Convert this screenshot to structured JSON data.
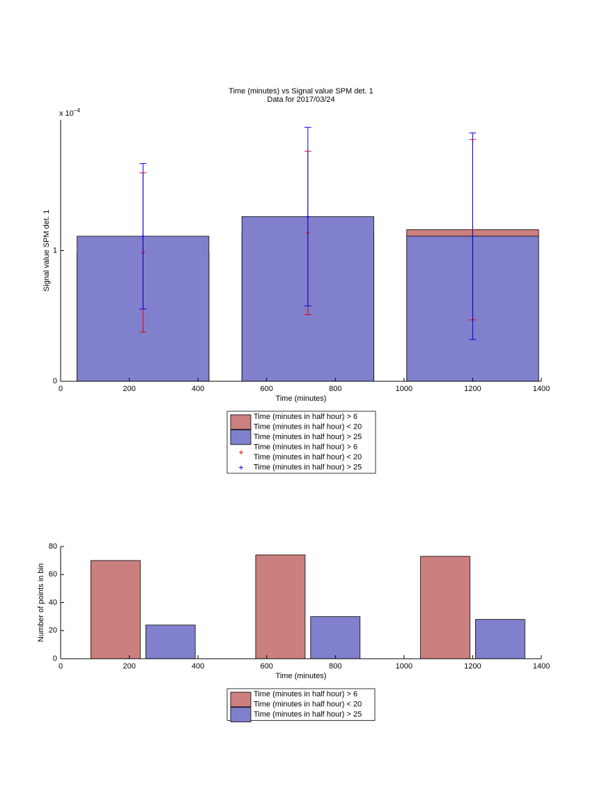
{
  "chart_data": [
    {
      "type": "bar",
      "barmode": "overlay",
      "title": [
        "Time (minutes) vs Signal value SPM det. 1",
        "Data for 2017/03/24"
      ],
      "xlabel": "Time (minutes)",
      "ylabel": "Signal value SPM det. 1",
      "y_multiplier": {
        "base": "x 10",
        "exponent": "−4"
      },
      "x": [
        240,
        720,
        1200
      ],
      "xlim": [
        0,
        1400
      ],
      "xticks": [
        0,
        200,
        400,
        600,
        800,
        1000,
        1200,
        1400
      ],
      "ylim": [
        0,
        2
      ],
      "yticks": [
        0,
        1
      ],
      "series": [
        {
          "name": [
            "Time (minutes in half hour) > 6",
            "Time (minutes in half hour) < 20"
          ],
          "color": "#cc7f7f",
          "error_color": "#e00000",
          "values": [
            0.985,
            1.135,
            1.16
          ],
          "errors": [
            0.61,
            0.625,
            0.69
          ]
        },
        {
          "name": [
            "Time (minutes in half hour) > 25"
          ],
          "color": "#8080cc",
          "error_color": "#0000e0",
          "values": [
            1.11,
            1.26,
            1.11
          ],
          "errors": [
            0.556,
            0.683,
            0.79
          ]
        }
      ]
    },
    {
      "type": "bar",
      "barmode": "group",
      "xlabel": "Time (minutes)",
      "ylabel": "Number of points in bin",
      "x": [
        240,
        720,
        1200
      ],
      "xlim": [
        0,
        1400
      ],
      "xticks": [
        0,
        200,
        400,
        600,
        800,
        1000,
        1200,
        1400
      ],
      "ylim": [
        0,
        80
      ],
      "yticks": [
        0,
        20,
        40,
        60,
        80
      ],
      "series": [
        {
          "name": [
            "Time (minutes in half hour) > 6",
            "Time (minutes in half hour) < 20"
          ],
          "color": "#cc7f7f",
          "values": [
            70,
            74,
            73
          ]
        },
        {
          "name": [
            "Time (minutes in half hour) > 25"
          ],
          "color": "#8080cc",
          "values": [
            24,
            30,
            28
          ]
        }
      ]
    }
  ]
}
